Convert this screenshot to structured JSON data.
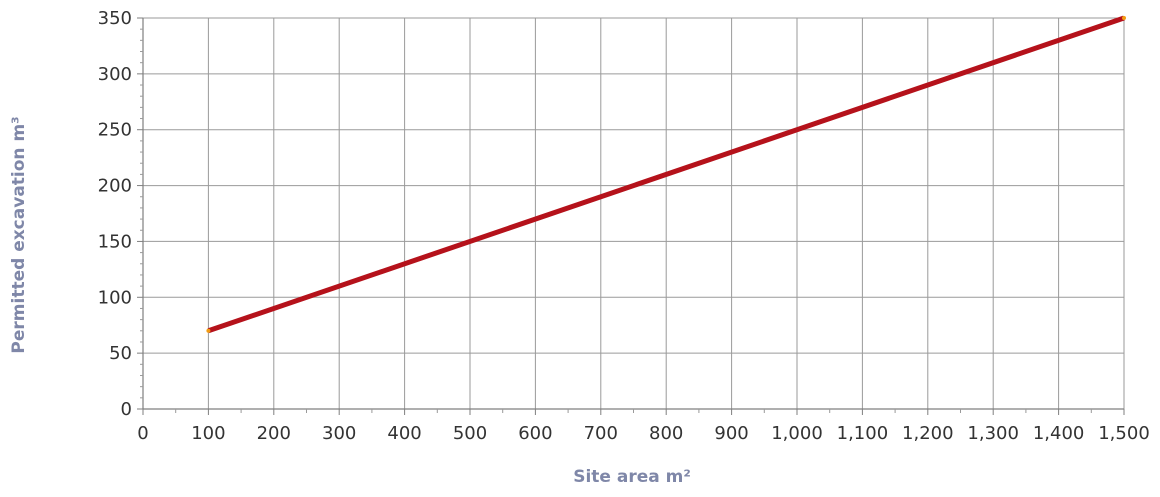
{
  "chart_data": {
    "type": "line",
    "title": "",
    "xlabel": "Site area m²",
    "ylabel": "Permitted excavation m³",
    "xlim": [
      0,
      1500
    ],
    "ylim": [
      0,
      350
    ],
    "x_ticks": [
      0,
      100,
      200,
      300,
      400,
      500,
      600,
      700,
      800,
      900,
      1000,
      1100,
      1200,
      1300,
      1400,
      1500
    ],
    "x_tick_labels": [
      "0",
      "100",
      "200",
      "300",
      "400",
      "500",
      "600",
      "700",
      "800",
      "900",
      "1,000",
      "1,100",
      "1,200",
      "1,300",
      "1,400",
      "1,500"
    ],
    "y_ticks": [
      0,
      50,
      100,
      150,
      200,
      250,
      300,
      350
    ],
    "y_tick_labels": [
      "0",
      "50",
      "100",
      "150",
      "200",
      "250",
      "300",
      "350"
    ],
    "grid": true,
    "legend": "none",
    "series": [
      {
        "color": "#b5121b",
        "marker_color": "#f39c12",
        "points": [
          [
            100,
            70
          ],
          [
            1500,
            350
          ]
        ]
      }
    ]
  }
}
